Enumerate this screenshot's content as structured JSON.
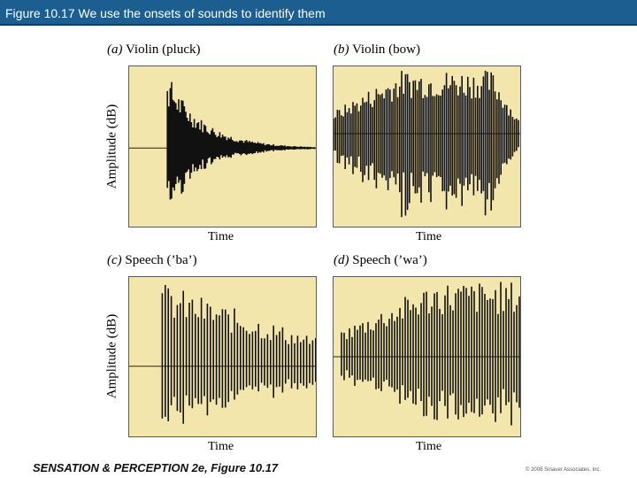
{
  "header": {
    "title": "Figure 10.17 We use the onsets of sounds to identify them"
  },
  "panels": [
    {
      "letter": "(a)",
      "label": "Violin (pluck)",
      "xlabel": "Time",
      "ylabel": "Amplitude (dB)",
      "onset": "abrupt attack, exponential decay"
    },
    {
      "letter": "(b)",
      "label": "Violin (bow)",
      "xlabel": "Time",
      "ylabel": "",
      "onset": "gradual swell and fade"
    },
    {
      "letter": "(c)",
      "label": "Speech (’ba’)",
      "xlabel": "Time",
      "ylabel": "Amplitude (dB)",
      "onset": "abrupt voiced onset, slow decay"
    },
    {
      "letter": "(d)",
      "label": "Speech (’wa’)",
      "xlabel": "Time",
      "ylabel": "",
      "onset": "gradual rise, sustained"
    }
  ],
  "colors": {
    "title_bar": "#1b5e8f",
    "plot_background": "#f3e6ad",
    "waveform": "#111111"
  },
  "footer": {
    "book": "SENSATION & PERCEPTION 2e, Figure 10.17",
    "copyright": "© 2008 Sinauer Associates, Inc."
  }
}
